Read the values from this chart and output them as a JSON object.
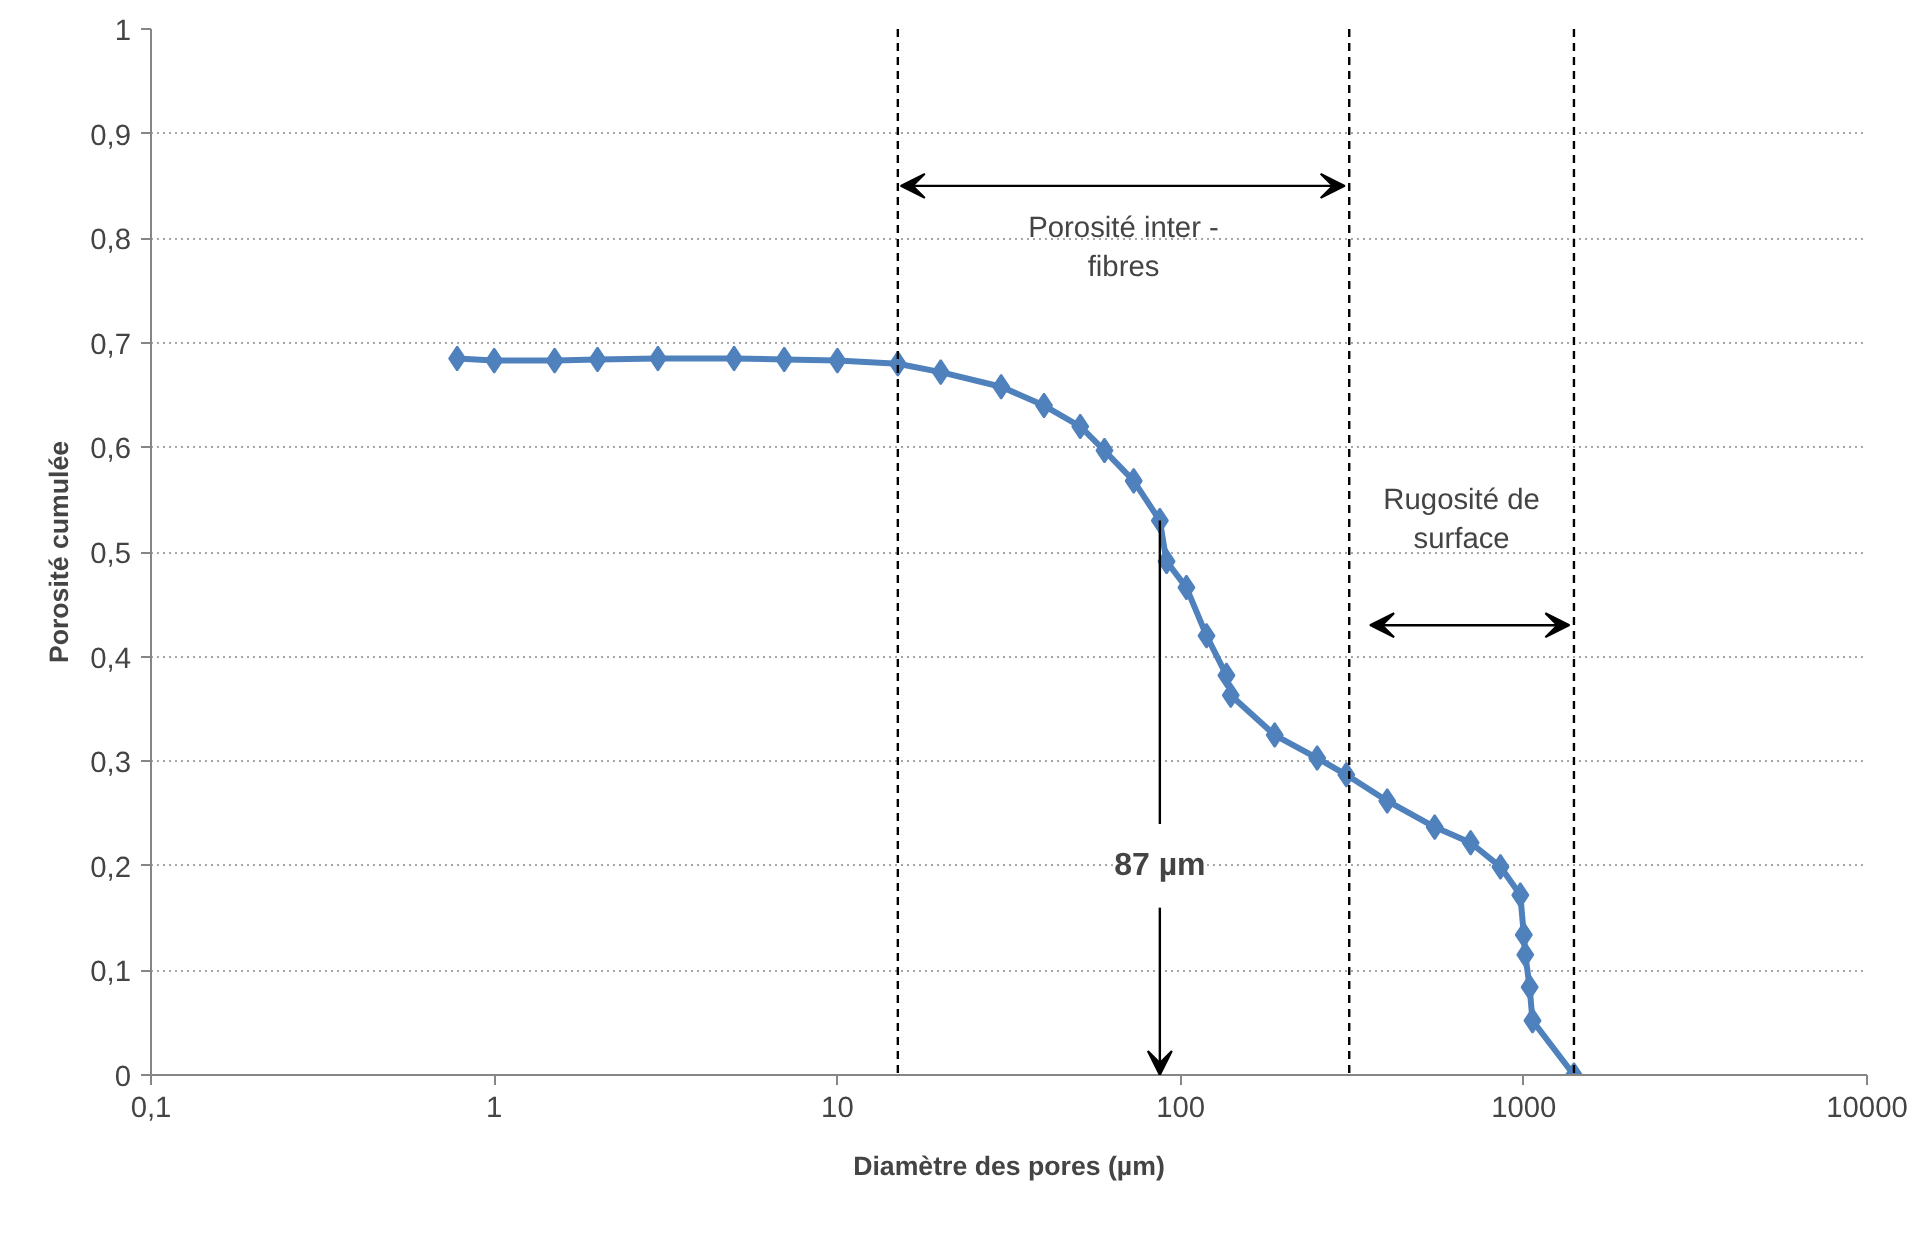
{
  "chart_data": {
    "type": "line",
    "xlabel": "Diamètre des pores (µm)",
    "ylabel": "Porosité cumulée",
    "log": "x",
    "xlim": [
      0.1,
      10000
    ],
    "ylim": [
      0,
      1
    ],
    "xticks": [
      {
        "value": 0.1,
        "label": "0,1"
      },
      1,
      10,
      100,
      1000,
      10000
    ],
    "yticks": [
      0,
      {
        "value": 0.1,
        "label": "0,1"
      },
      {
        "value": 0.2,
        "label": "0,2"
      },
      {
        "value": 0.3,
        "label": "0,3"
      },
      {
        "value": 0.4,
        "label": "0,4"
      },
      {
        "value": 0.5,
        "label": "0,5"
      },
      {
        "value": 0.6,
        "label": "0,6"
      },
      {
        "value": 0.7,
        "label": "0,7"
      },
      {
        "value": 0.8,
        "label": "0,8"
      },
      {
        "value": 0.9,
        "label": "0,9"
      },
      1
    ],
    "grid": "y",
    "marker": "diamond",
    "line_style": "solid",
    "series": [
      {
        "color": "#4f81bd",
        "x": [
          0.78,
          1,
          1.5,
          2,
          3,
          5,
          7,
          10,
          15,
          20,
          30,
          40,
          51,
          60,
          73,
          87,
          91,
          104,
          119,
          136,
          140,
          188,
          250,
          304,
          400,
          550,
          700,
          855,
          977,
          1000,
          1010,
          1040,
          1060,
          1400
        ],
        "values": [
          0.685,
          0.683,
          0.683,
          0.684,
          0.685,
          0.685,
          0.684,
          0.683,
          0.68,
          0.672,
          0.658,
          0.64,
          0.62,
          0.597,
          0.568,
          0.53,
          0.491,
          0.466,
          0.42,
          0.382,
          0.363,
          0.325,
          0.303,
          0.287,
          0.262,
          0.237,
          0.222,
          0.199,
          0.172,
          0.134,
          0.115,
          0.084,
          0.052,
          0
        ]
      }
    ],
    "ref_lines": [
      {
        "axis": "x",
        "value": 15,
        "line_style": "dashed",
        "color": "#000000"
      },
      {
        "axis": "x",
        "value": 310,
        "line_style": "dashed",
        "color": "#000000"
      },
      {
        "axis": "x",
        "value": 1400,
        "line_style": "dashed",
        "color": "#000000"
      }
    ],
    "annotations": [
      "Porosité inter -\nfibres",
      "Rugosité de\nsurface",
      {
        "text": "87 µm",
        "x": 87,
        "y": 0.53
      }
    ]
  }
}
